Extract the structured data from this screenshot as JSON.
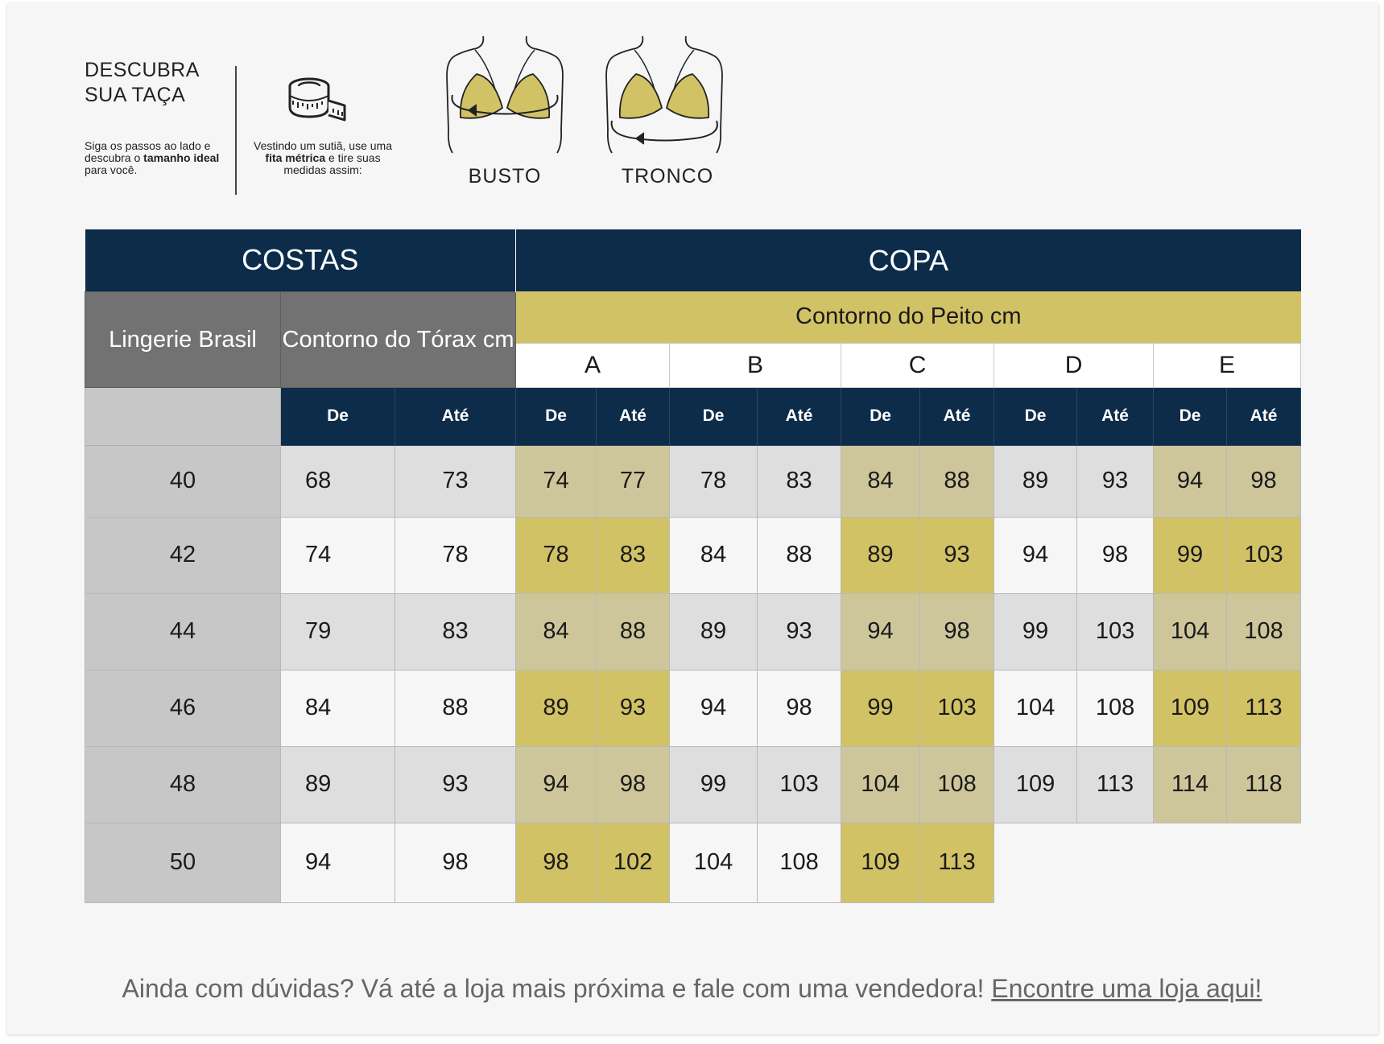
{
  "guide": {
    "title_line1": "DESCUBRA",
    "title_line2": "SUA TAÇA",
    "intro_pre": "Siga os passos ao lado e descubra o ",
    "intro_bold": "tamanho ideal",
    "intro_post": " para você.",
    "step_pre": "Vestindo um sutiã, use uma ",
    "step_bold": "fita métrica",
    "step_post": " e tire suas medidas assim:",
    "tape_icon": "measuring-tape-icon",
    "busto_label": "BUSTO",
    "tronco_label": "TRONCO"
  },
  "colors": {
    "navy": "#0c2c4a",
    "gold": "#d2c266",
    "gold_muted": "#cec69b",
    "header_grey": "#727272",
    "size_grey": "#c6c7c6",
    "row_grey": "#dedede"
  },
  "table": {
    "costas": "COSTAS",
    "copa": "COPA",
    "lingerie_brasil": "Lingerie Brasil",
    "contorno_torax": "Contorno do Tórax cm",
    "contorno_peito": "Contorno do Peito cm",
    "cups": [
      "A",
      "B",
      "C",
      "D",
      "E"
    ],
    "de": "De",
    "ate": "Até",
    "rows": [
      {
        "size": "40",
        "torax": [
          "68",
          "73"
        ],
        "A": [
          "74",
          "77"
        ],
        "B": [
          "78",
          "83"
        ],
        "C": [
          "84",
          "88"
        ],
        "D": [
          "89",
          "93"
        ],
        "E": [
          "94",
          "98"
        ]
      },
      {
        "size": "42",
        "torax": [
          "74",
          "78"
        ],
        "A": [
          "78",
          "83"
        ],
        "B": [
          "84",
          "88"
        ],
        "C": [
          "89",
          "93"
        ],
        "D": [
          "94",
          "98"
        ],
        "E": [
          "99",
          "103"
        ]
      },
      {
        "size": "44",
        "torax": [
          "79",
          "83"
        ],
        "A": [
          "84",
          "88"
        ],
        "B": [
          "89",
          "93"
        ],
        "C": [
          "94",
          "98"
        ],
        "D": [
          "99",
          "103"
        ],
        "E": [
          "104",
          "108"
        ]
      },
      {
        "size": "46",
        "torax": [
          "84",
          "88"
        ],
        "A": [
          "89",
          "93"
        ],
        "B": [
          "94",
          "98"
        ],
        "C": [
          "99",
          "103"
        ],
        "D": [
          "104",
          "108"
        ],
        "E": [
          "109",
          "113"
        ]
      },
      {
        "size": "48",
        "torax": [
          "89",
          "93"
        ],
        "A": [
          "94",
          "98"
        ],
        "B": [
          "99",
          "103"
        ],
        "C": [
          "104",
          "108"
        ],
        "D": [
          "109",
          "113"
        ],
        "E": [
          "114",
          "118"
        ]
      },
      {
        "size": "50",
        "torax": [
          "94",
          "98"
        ],
        "A": [
          "98",
          "102"
        ],
        "B": [
          "104",
          "108"
        ],
        "C": [
          "109",
          "113"
        ],
        "D": [
          "",
          ""
        ],
        "E": [
          "",
          ""
        ]
      }
    ]
  },
  "footer": {
    "text": "Ainda com dúvidas? Vá até a loja mais próxima e fale com uma vendedora! ",
    "link": "Encontre uma loja aqui!"
  }
}
